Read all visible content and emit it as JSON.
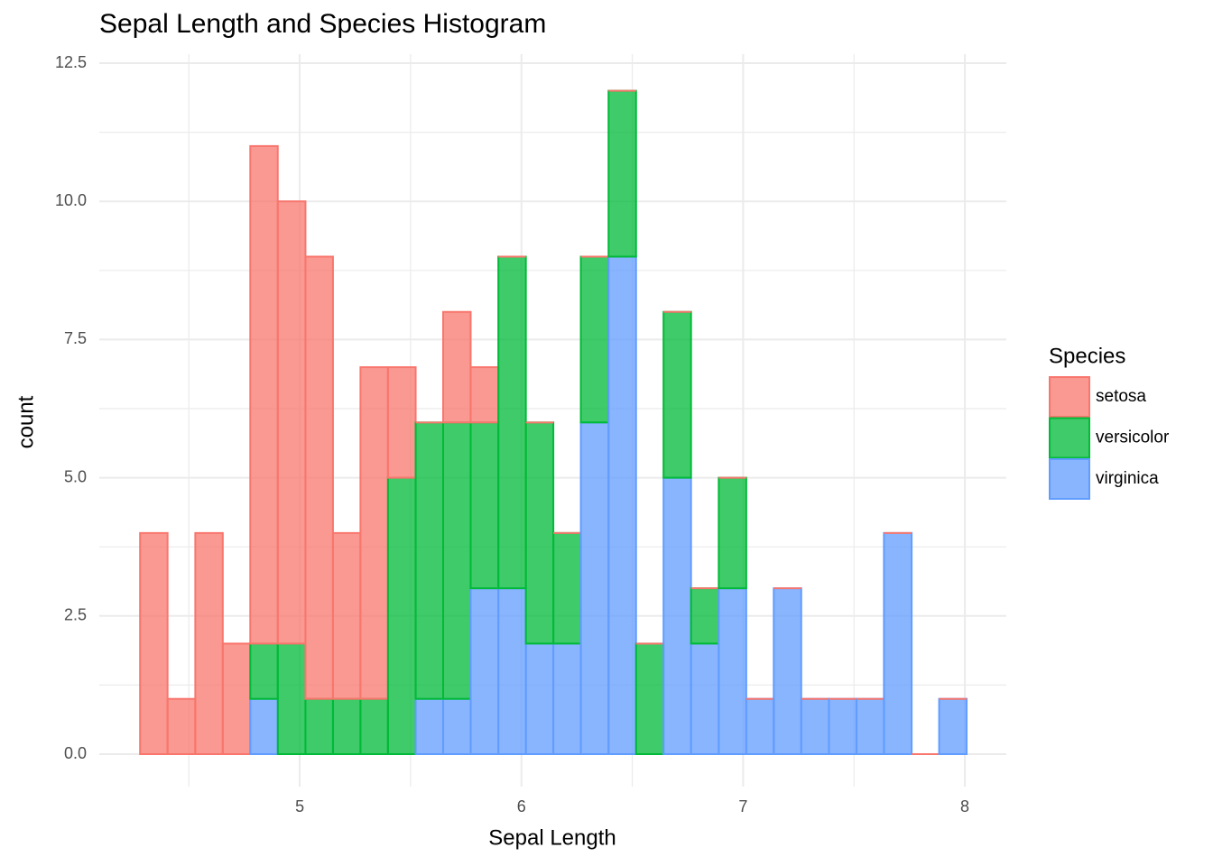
{
  "chart_data": {
    "type": "histogram",
    "title": "Sepal Length and Species Histogram",
    "x_label": "Sepal Length",
    "y_label": "count",
    "legend_title": "Species",
    "legend_position": "right",
    "stacked": true,
    "grid": true,
    "bins": [
      4.28,
      4.404,
      4.529,
      4.653,
      4.777,
      4.901,
      5.026,
      5.15,
      5.274,
      5.398,
      5.523,
      5.647,
      5.771,
      5.896,
      6.02,
      6.144,
      6.268,
      6.393,
      6.517,
      6.641,
      6.765,
      6.89,
      7.014,
      7.138,
      7.262,
      7.387,
      7.511,
      7.635,
      7.76,
      7.884,
      8.008
    ],
    "series": [
      {
        "name": "setosa",
        "color": "#F8766D",
        "values": [
          4,
          1,
          4,
          2,
          9,
          8,
          8,
          3,
          6,
          2,
          0,
          2,
          1,
          0,
          0,
          0,
          0,
          0,
          0,
          0,
          0,
          0,
          0,
          0,
          0,
          0,
          0,
          0,
          0,
          0
        ]
      },
      {
        "name": "versicolor",
        "color": "#00BA38",
        "values": [
          0,
          0,
          0,
          0,
          1,
          2,
          1,
          1,
          1,
          5,
          5,
          5,
          3,
          6,
          4,
          2,
          3,
          3,
          2,
          3,
          1,
          2,
          0,
          0,
          0,
          0,
          0,
          0,
          0,
          0
        ]
      },
      {
        "name": "virginica",
        "color": "#619CFF",
        "values": [
          0,
          0,
          0,
          0,
          1,
          0,
          0,
          0,
          0,
          0,
          1,
          1,
          3,
          3,
          2,
          2,
          6,
          9,
          0,
          5,
          2,
          3,
          1,
          3,
          1,
          1,
          1,
          4,
          0,
          1
        ]
      }
    ],
    "xlim": [
      4.096,
      8.187
    ],
    "xticks": [
      5,
      6,
      7,
      8
    ],
    "x_minor_ticks": [
      4.5,
      5.5,
      6.5,
      7.5
    ],
    "ylim": [
      0,
      12.5
    ],
    "yticks": [
      {
        "value": 0,
        "label": "0.0"
      },
      {
        "value": 2.5,
        "label": "2.5"
      },
      {
        "value": 5,
        "label": "5.0"
      },
      {
        "value": 7.5,
        "label": "7.5"
      },
      {
        "value": 10,
        "label": "10.0"
      },
      {
        "value": 12.5,
        "label": "12.5"
      }
    ],
    "y_minor_ticks": [
      1.25,
      3.75,
      6.25,
      8.75,
      11.25
    ]
  }
}
